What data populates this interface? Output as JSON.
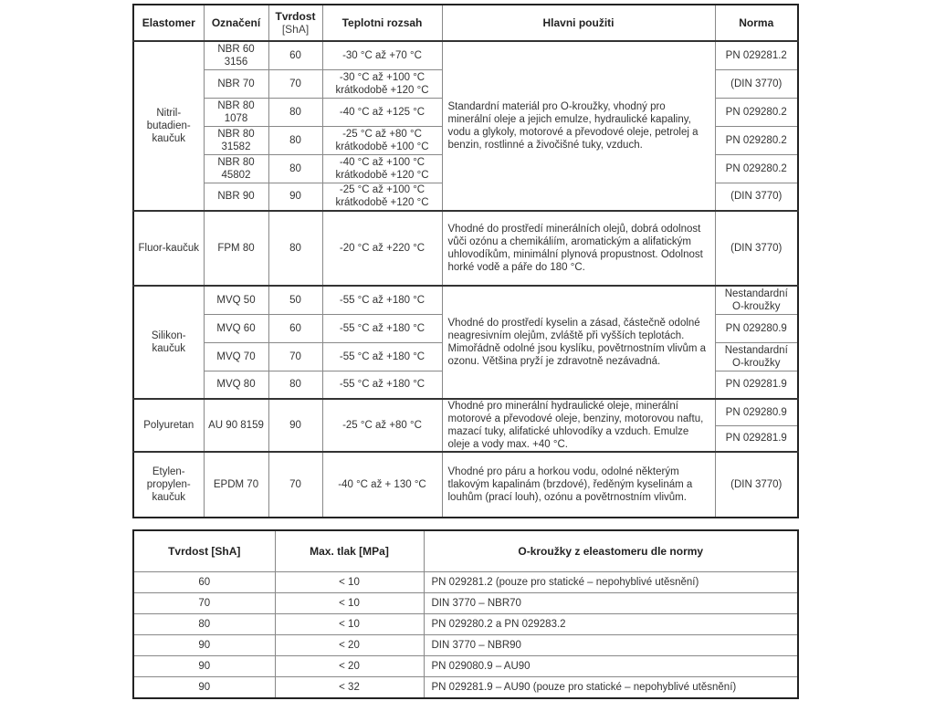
{
  "table1": {
    "headers": {
      "elastomer": "Elastomer",
      "designation": "Označení",
      "hardness": "Tvrdost",
      "hardness_unit": "[ShA]",
      "temperature": "Teplotni rozsah",
      "usage": "Hlavni použiti",
      "norm": "Norma"
    },
    "groups": [
      {
        "elastomer": "Nitril-butadien-kaučuk",
        "usage": "Standardní materiál pro O-kroužky, vhodný pro minerální oleje a jejich emulze, hydraulické kapaliny, vodu a glykoly, motorové a převodové oleje, petrolej a benzin, rostlinné a živočišné tuky, vzduch.",
        "rows": [
          {
            "designation": "NBR 60 3156",
            "hardness": "60",
            "temperature": "-30 °C až +70 °C"
          },
          {
            "designation": "NBR 70",
            "hardness": "70",
            "temperature": "-30 °C až +100 °C krátkodobě +120 °C"
          },
          {
            "designation": "NBR 80 1078",
            "hardness": "80",
            "temperature": "-40 °C až +125 °C"
          },
          {
            "designation": "NBR 80 31582",
            "hardness": "80",
            "temperature": "-25 °C až +80 °C krátkodobě +100 °C"
          },
          {
            "designation": "NBR 80 45802",
            "hardness": "80",
            "temperature": "-40 °C až +100 °C krátkodobě +120 °C"
          },
          {
            "designation": "NBR 90",
            "hardness": "90",
            "temperature": "-25 °C až +100 °C krátkodobě +120 °C"
          }
        ],
        "norms": [
          "PN 029281.2",
          "(DIN 3770)",
          "PN 029280.2",
          "PN 029280.2",
          "PN 029280.2",
          "(DIN 3770)"
        ]
      },
      {
        "elastomer": "Fluor-kaučuk",
        "usage": "Vhodné do prostředí minerálních olejů, dobrá odolnost vůči ozónu a chemikáliím, aromatickým a alifatickým uhlovodíkům, minimální plynová propustnost. Odolnost horké vodě a páře do 180 °C.",
        "rows": [
          {
            "designation": "FPM 80",
            "hardness": "80",
            "temperature": "-20 °C až +220 °C"
          }
        ],
        "norms": [
          "(DIN 3770)"
        ]
      },
      {
        "elastomer": "Silikon-kaučuk",
        "usage": "Vhodné do prostředí kyselin a zásad, částečně odolné neagresivním olejům, zvláště při vyšších teplotách. Mimořádně odolné jsou kyslíku, povětrnostním vlivům a ozonu. Většina pryží je zdravotně nezávadná.",
        "rows": [
          {
            "designation": "MVQ 50",
            "hardness": "50",
            "temperature": "-55 °C až +180 °C"
          },
          {
            "designation": "MVQ 60",
            "hardness": "60",
            "temperature": "-55 °C až +180 °C"
          },
          {
            "designation": "MVQ 70",
            "hardness": "70",
            "temperature": "-55 °C až +180 °C"
          },
          {
            "designation": "MVQ 80",
            "hardness": "80",
            "temperature": "-55 °C až +180 °C"
          }
        ],
        "norms": [
          "Nestandardní O-kroužky",
          "PN 029280.9",
          "Nestandardní O-kroužky",
          "PN 029281.9"
        ]
      },
      {
        "elastomer": "Polyuretan",
        "usage": "Vhodné pro minerální hydraulické oleje, minerální motorové a převodové oleje, benziny, motorovou naftu, mazací tuky, alifatické uhlovodíky a vzduch. Emulze oleje a vody max. +40 °C.",
        "rows": [
          {
            "designation": "AU 90 8159",
            "hardness": "90",
            "temperature": "-25 °C až +80 °C"
          }
        ],
        "norms": [
          "PN 029280.9",
          "PN 029281.9"
        ]
      },
      {
        "elastomer": "Etylen-propylen-kaučuk",
        "usage": "Vhodné pro páru a horkou vodu, odolné některým tlakovým kapalinám (brzdové), ředěným kyselinám a louhům (prací louh), ozónu a povětrnostním vlivům.",
        "rows": [
          {
            "designation": "EPDM 70",
            "hardness": "70",
            "temperature": "-40 °C až + 130 °C"
          }
        ],
        "norms": [
          "(DIN 3770)"
        ]
      }
    ]
  },
  "table2": {
    "headers": [
      "Tvrdost [ShA]",
      "Max. tlak [MPa]",
      "O-kroužky z eleastomeru dle normy"
    ],
    "rows": [
      [
        "60",
        "< 10",
        "PN 029281.2 (pouze pro statické – nepohyblivé utěsnění)"
      ],
      [
        "70",
        "< 10",
        "DIN 3770 – NBR70"
      ],
      [
        "80",
        "< 10",
        "PN 029280.2 a PN 029283.2"
      ],
      [
        "90",
        "< 20",
        "DIN 3770 – NBR90"
      ],
      [
        "90",
        "< 20",
        "PN 029080.9 – AU90"
      ],
      [
        "90",
        "< 32",
        "PN 029281.9 – AU90 (pouze pro statické – nepohyblivé utěsnění)"
      ]
    ]
  }
}
